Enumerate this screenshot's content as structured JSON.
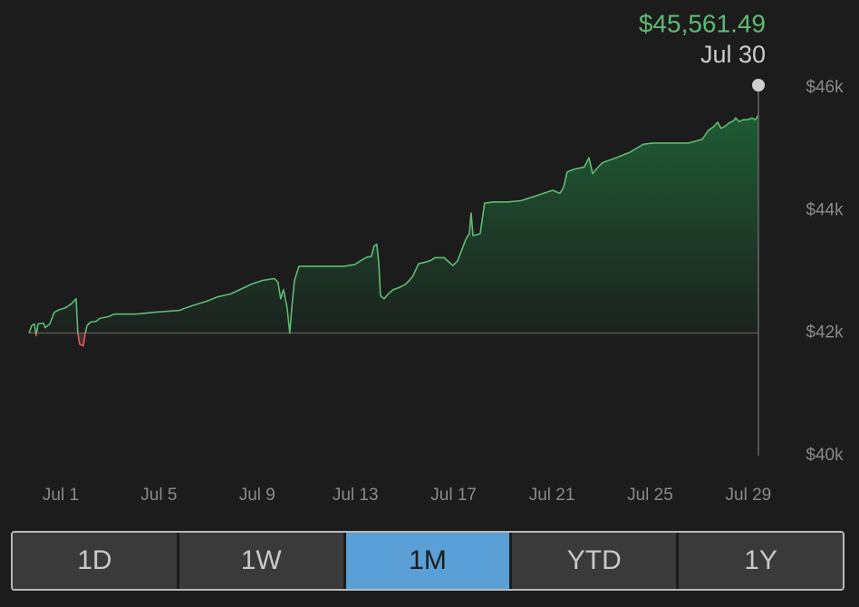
{
  "chart_data": {
    "type": "line",
    "x": [
      -0.29,
      -0.18,
      -0.07,
      0.0,
      0.08,
      0.3,
      0.37,
      0.56,
      0.74,
      0.93,
      1.18,
      1.41,
      1.63,
      1.7,
      1.77,
      1.92,
      2.0,
      2.07,
      2.22,
      2.44,
      2.59,
      2.96,
      3.18,
      4.06,
      4.8,
      5.83,
      6.09,
      6.46,
      6.94,
      7.38,
      7.93,
      8.3,
      8.78,
      9.22,
      9.7,
      9.85,
      9.96,
      10.07,
      10.22,
      10.33,
      10.41,
      10.52,
      10.7,
      11.44,
      12.55,
      12.99,
      13.21,
      13.47,
      13.65,
      13.76,
      13.87,
      13.95,
      14.02,
      14.17,
      14.32,
      14.54,
      14.76,
      15.02,
      15.2,
      15.35,
      15.57,
      15.87,
      16.09,
      16.24,
      16.61,
      16.97,
      17.16,
      17.34,
      17.53,
      17.64,
      17.71,
      17.79,
      18.08,
      18.26,
      18.63,
      19.19,
      19.74,
      20.29,
      20.66,
      21.03,
      21.33,
      21.48,
      21.62,
      21.88,
      22.32,
      22.51,
      22.66,
      22.8,
      23.06,
      23.61,
      24.17,
      24.72,
      25.09,
      26.57,
      27.12,
      27.38,
      27.6,
      27.75,
      27.89,
      28.04,
      28.22,
      28.41,
      28.48,
      28.63,
      28.78,
      28.96,
      29.15,
      29.29,
      29.41
    ],
    "values": [
      42000,
      42120,
      42150,
      41960,
      42150,
      42160,
      42090,
      42150,
      42340,
      42380,
      42410,
      42470,
      42560,
      42000,
      41820,
      41790,
      42000,
      42120,
      42180,
      42190,
      42240,
      42270,
      42310,
      42310,
      42340,
      42370,
      42410,
      42460,
      42520,
      42590,
      42640,
      42710,
      42800,
      42860,
      42890,
      42830,
      42560,
      42710,
      42410,
      42000,
      42410,
      42860,
      43090,
      43090,
      43090,
      43120,
      43180,
      43240,
      43250,
      43420,
      43450,
      43150,
      42610,
      42560,
      42630,
      42710,
      42740,
      42790,
      42860,
      42940,
      43130,
      43160,
      43190,
      43230,
      43230,
      43100,
      43180,
      43370,
      43560,
      43620,
      43960,
      43590,
      43620,
      44120,
      44140,
      44140,
      44160,
      44230,
      44280,
      44330,
      44280,
      44380,
      44630,
      44670,
      44710,
      44860,
      44600,
      44670,
      44780,
      44860,
      44950,
      45080,
      45100,
      45100,
      45160,
      45310,
      45370,
      45440,
      45340,
      45370,
      45430,
      45470,
      45510,
      45450,
      45480,
      45480,
      45510,
      45480,
      45561.49
    ],
    "color": "#5dbb74",
    "color_below": "#e05c5c",
    "baseline": 42000,
    "xlim": [
      -0.29,
      29.41
    ],
    "xticks": [
      {
        "value": 1,
        "label": "Jul 1"
      },
      {
        "value": 5,
        "label": "Jul 5"
      },
      {
        "value": 9,
        "label": "Jul 9"
      },
      {
        "value": 13,
        "label": "Jul 13"
      },
      {
        "value": 17,
        "label": "Jul 17"
      },
      {
        "value": 21,
        "label": "Jul 21"
      },
      {
        "value": 25,
        "label": "Jul 25"
      },
      {
        "value": 29,
        "label": "Jul 29"
      }
    ],
    "ylim": [
      40000,
      46000
    ],
    "yticks": [
      {
        "value": 40000,
        "label": "$40k"
      },
      {
        "value": 42000,
        "label": "$42k"
      },
      {
        "value": 44000,
        "label": "$44k"
      },
      {
        "value": 46000,
        "label": "$46k"
      }
    ],
    "tooltip": {
      "value": "$45,561.49",
      "date": "Jul 30"
    }
  },
  "controls": {
    "buttons": [
      "1D",
      "1W",
      "1M",
      "YTD",
      "1Y"
    ],
    "selected": 2
  }
}
